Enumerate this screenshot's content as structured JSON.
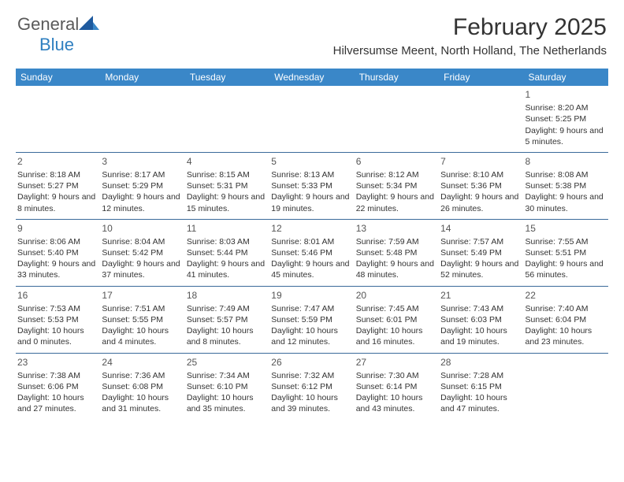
{
  "logo": {
    "part1": "General",
    "part2": "Blue"
  },
  "title": "February 2025",
  "subtitle": "Hilversumse Meent, North Holland, The Netherlands",
  "colors": {
    "header_bg": "#3a87c8",
    "header_text": "#ffffff",
    "rule": "#3a6a9a",
    "logo_gray": "#5a5a5a",
    "logo_blue": "#2f7fc0",
    "text": "#333333"
  },
  "daynames": [
    "Sunday",
    "Monday",
    "Tuesday",
    "Wednesday",
    "Thursday",
    "Friday",
    "Saturday"
  ],
  "weeks": [
    [
      null,
      null,
      null,
      null,
      null,
      null,
      {
        "n": "1",
        "sr": "Sunrise: 8:20 AM",
        "ss": "Sunset: 5:25 PM",
        "dl": "Daylight: 9 hours and 5 minutes."
      }
    ],
    [
      {
        "n": "2",
        "sr": "Sunrise: 8:18 AM",
        "ss": "Sunset: 5:27 PM",
        "dl": "Daylight: 9 hours and 8 minutes."
      },
      {
        "n": "3",
        "sr": "Sunrise: 8:17 AM",
        "ss": "Sunset: 5:29 PM",
        "dl": "Daylight: 9 hours and 12 minutes."
      },
      {
        "n": "4",
        "sr": "Sunrise: 8:15 AM",
        "ss": "Sunset: 5:31 PM",
        "dl": "Daylight: 9 hours and 15 minutes."
      },
      {
        "n": "5",
        "sr": "Sunrise: 8:13 AM",
        "ss": "Sunset: 5:33 PM",
        "dl": "Daylight: 9 hours and 19 minutes."
      },
      {
        "n": "6",
        "sr": "Sunrise: 8:12 AM",
        "ss": "Sunset: 5:34 PM",
        "dl": "Daylight: 9 hours and 22 minutes."
      },
      {
        "n": "7",
        "sr": "Sunrise: 8:10 AM",
        "ss": "Sunset: 5:36 PM",
        "dl": "Daylight: 9 hours and 26 minutes."
      },
      {
        "n": "8",
        "sr": "Sunrise: 8:08 AM",
        "ss": "Sunset: 5:38 PM",
        "dl": "Daylight: 9 hours and 30 minutes."
      }
    ],
    [
      {
        "n": "9",
        "sr": "Sunrise: 8:06 AM",
        "ss": "Sunset: 5:40 PM",
        "dl": "Daylight: 9 hours and 33 minutes."
      },
      {
        "n": "10",
        "sr": "Sunrise: 8:04 AM",
        "ss": "Sunset: 5:42 PM",
        "dl": "Daylight: 9 hours and 37 minutes."
      },
      {
        "n": "11",
        "sr": "Sunrise: 8:03 AM",
        "ss": "Sunset: 5:44 PM",
        "dl": "Daylight: 9 hours and 41 minutes."
      },
      {
        "n": "12",
        "sr": "Sunrise: 8:01 AM",
        "ss": "Sunset: 5:46 PM",
        "dl": "Daylight: 9 hours and 45 minutes."
      },
      {
        "n": "13",
        "sr": "Sunrise: 7:59 AM",
        "ss": "Sunset: 5:48 PM",
        "dl": "Daylight: 9 hours and 48 minutes."
      },
      {
        "n": "14",
        "sr": "Sunrise: 7:57 AM",
        "ss": "Sunset: 5:49 PM",
        "dl": "Daylight: 9 hours and 52 minutes."
      },
      {
        "n": "15",
        "sr": "Sunrise: 7:55 AM",
        "ss": "Sunset: 5:51 PM",
        "dl": "Daylight: 9 hours and 56 minutes."
      }
    ],
    [
      {
        "n": "16",
        "sr": "Sunrise: 7:53 AM",
        "ss": "Sunset: 5:53 PM",
        "dl": "Daylight: 10 hours and 0 minutes."
      },
      {
        "n": "17",
        "sr": "Sunrise: 7:51 AM",
        "ss": "Sunset: 5:55 PM",
        "dl": "Daylight: 10 hours and 4 minutes."
      },
      {
        "n": "18",
        "sr": "Sunrise: 7:49 AM",
        "ss": "Sunset: 5:57 PM",
        "dl": "Daylight: 10 hours and 8 minutes."
      },
      {
        "n": "19",
        "sr": "Sunrise: 7:47 AM",
        "ss": "Sunset: 5:59 PM",
        "dl": "Daylight: 10 hours and 12 minutes."
      },
      {
        "n": "20",
        "sr": "Sunrise: 7:45 AM",
        "ss": "Sunset: 6:01 PM",
        "dl": "Daylight: 10 hours and 16 minutes."
      },
      {
        "n": "21",
        "sr": "Sunrise: 7:43 AM",
        "ss": "Sunset: 6:03 PM",
        "dl": "Daylight: 10 hours and 19 minutes."
      },
      {
        "n": "22",
        "sr": "Sunrise: 7:40 AM",
        "ss": "Sunset: 6:04 PM",
        "dl": "Daylight: 10 hours and 23 minutes."
      }
    ],
    [
      {
        "n": "23",
        "sr": "Sunrise: 7:38 AM",
        "ss": "Sunset: 6:06 PM",
        "dl": "Daylight: 10 hours and 27 minutes."
      },
      {
        "n": "24",
        "sr": "Sunrise: 7:36 AM",
        "ss": "Sunset: 6:08 PM",
        "dl": "Daylight: 10 hours and 31 minutes."
      },
      {
        "n": "25",
        "sr": "Sunrise: 7:34 AM",
        "ss": "Sunset: 6:10 PM",
        "dl": "Daylight: 10 hours and 35 minutes."
      },
      {
        "n": "26",
        "sr": "Sunrise: 7:32 AM",
        "ss": "Sunset: 6:12 PM",
        "dl": "Daylight: 10 hours and 39 minutes."
      },
      {
        "n": "27",
        "sr": "Sunrise: 7:30 AM",
        "ss": "Sunset: 6:14 PM",
        "dl": "Daylight: 10 hours and 43 minutes."
      },
      {
        "n": "28",
        "sr": "Sunrise: 7:28 AM",
        "ss": "Sunset: 6:15 PM",
        "dl": "Daylight: 10 hours and 47 minutes."
      },
      null
    ]
  ]
}
